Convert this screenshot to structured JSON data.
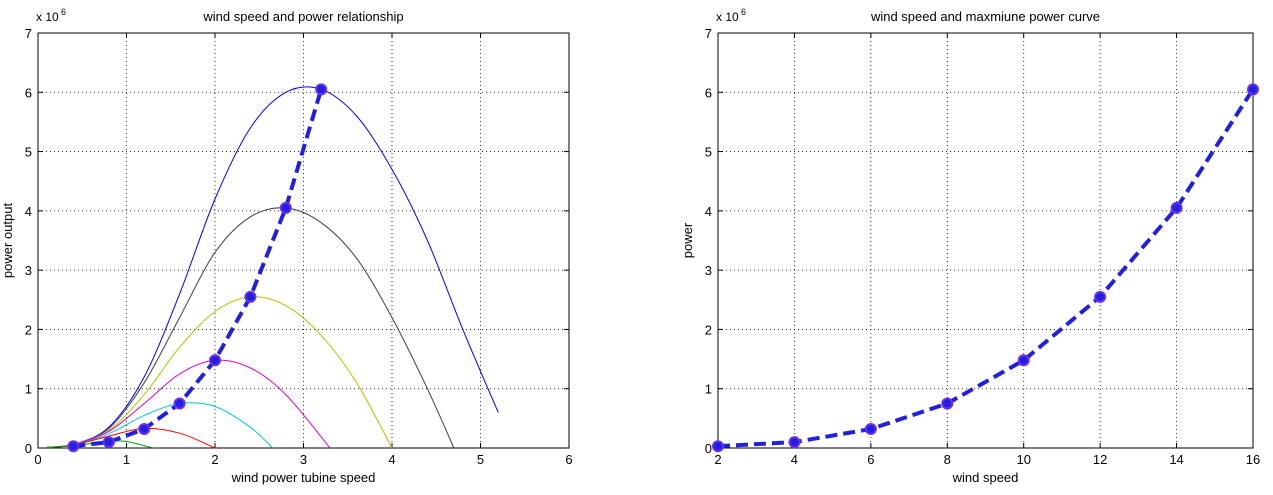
{
  "chart_data": [
    {
      "type": "line",
      "title": "wind speed and power relationship",
      "xlabel": "wind power tubine speed",
      "ylabel": "power output",
      "xlim": [
        0,
        6
      ],
      "ylim": [
        0,
        7000000
      ],
      "x_ticks": [
        0,
        1,
        2,
        3,
        4,
        5,
        6
      ],
      "y_ticks": [
        0,
        1,
        2,
        3,
        4,
        5,
        6,
        7
      ],
      "y_exponent_label": "x 10",
      "y_exponent_power": "6",
      "grid": true,
      "series": [
        {
          "color": "#0000ff",
          "style": "solid",
          "x": [
            0.1,
            0.4,
            0.8,
            1.2,
            1.6,
            2.0,
            2.4,
            2.8,
            3.2,
            3.6,
            4.0,
            4.4,
            4.8,
            5.2
          ],
          "y": [
            10000,
            60000,
            350000,
            1200000,
            2600000,
            4200000,
            5400000,
            6000000,
            6050000,
            5600000,
            4700000,
            3500000,
            2000000,
            600000
          ]
        },
        {
          "color": "#404040",
          "style": "solid",
          "x": [
            0.1,
            0.4,
            0.8,
            1.2,
            1.6,
            2.0,
            2.4,
            2.8,
            3.2,
            3.6,
            4.0,
            4.4,
            4.7
          ],
          "y": [
            10000,
            60000,
            330000,
            1100000,
            2200000,
            3300000,
            3900000,
            4050000,
            3800000,
            3200000,
            2200000,
            1000000,
            0
          ]
        },
        {
          "color": "#b5c400",
          "style": "solid",
          "x": [
            0.1,
            0.4,
            0.8,
            1.2,
            1.6,
            2.0,
            2.4,
            2.8,
            3.2,
            3.6,
            4.0
          ],
          "y": [
            10000,
            60000,
            300000,
            900000,
            1700000,
            2300000,
            2550000,
            2400000,
            1900000,
            1100000,
            0
          ]
        },
        {
          "color": "#e000d0",
          "style": "solid",
          "x": [
            0.1,
            0.4,
            0.8,
            1.2,
            1.6,
            2.0,
            2.4,
            2.8,
            3.3
          ],
          "y": [
            10000,
            60000,
            280000,
            750000,
            1250000,
            1480000,
            1350000,
            900000,
            0
          ]
        },
        {
          "color": "#00c8e0",
          "style": "solid",
          "x": [
            0.1,
            0.4,
            0.8,
            1.2,
            1.6,
            2.0,
            2.4,
            2.65
          ],
          "y": [
            10000,
            55000,
            240000,
            550000,
            750000,
            700000,
            350000,
            0
          ]
        },
        {
          "color": "#ff0000",
          "style": "solid",
          "x": [
            0.1,
            0.4,
            0.8,
            1.2,
            1.6,
            2.0
          ],
          "y": [
            10000,
            50000,
            200000,
            330000,
            250000,
            0
          ]
        },
        {
          "color": "#00a000",
          "style": "solid",
          "x": [
            0.1,
            0.4,
            0.8,
            1.0,
            1.3
          ],
          "y": [
            8000,
            40000,
            110000,
            110000,
            0
          ]
        },
        {
          "color": "#2020e0",
          "style": "dashed-markers",
          "x": [
            0.4,
            0.8,
            1.2,
            1.6,
            2.0,
            2.4,
            2.8,
            3.2
          ],
          "y": [
            30000,
            100000,
            320000,
            750000,
            1480000,
            2550000,
            4050000,
            6050000
          ]
        }
      ]
    },
    {
      "type": "line",
      "title": "wind speed and maxmiune power curve",
      "xlabel": "wind speed",
      "ylabel": "power",
      "xlim": [
        2,
        16
      ],
      "ylim": [
        0,
        7000000
      ],
      "x_ticks": [
        2,
        4,
        6,
        8,
        10,
        12,
        14,
        16
      ],
      "y_ticks": [
        0,
        1,
        2,
        3,
        4,
        5,
        6,
        7
      ],
      "y_exponent_label": "x 10",
      "y_exponent_power": "6",
      "grid": true,
      "series": [
        {
          "color": "#2020e0",
          "style": "dashed-markers",
          "x": [
            2,
            4,
            6,
            8,
            10,
            12,
            14,
            16
          ],
          "y": [
            30000,
            100000,
            320000,
            750000,
            1480000,
            2550000,
            4050000,
            6050000
          ]
        }
      ]
    }
  ]
}
